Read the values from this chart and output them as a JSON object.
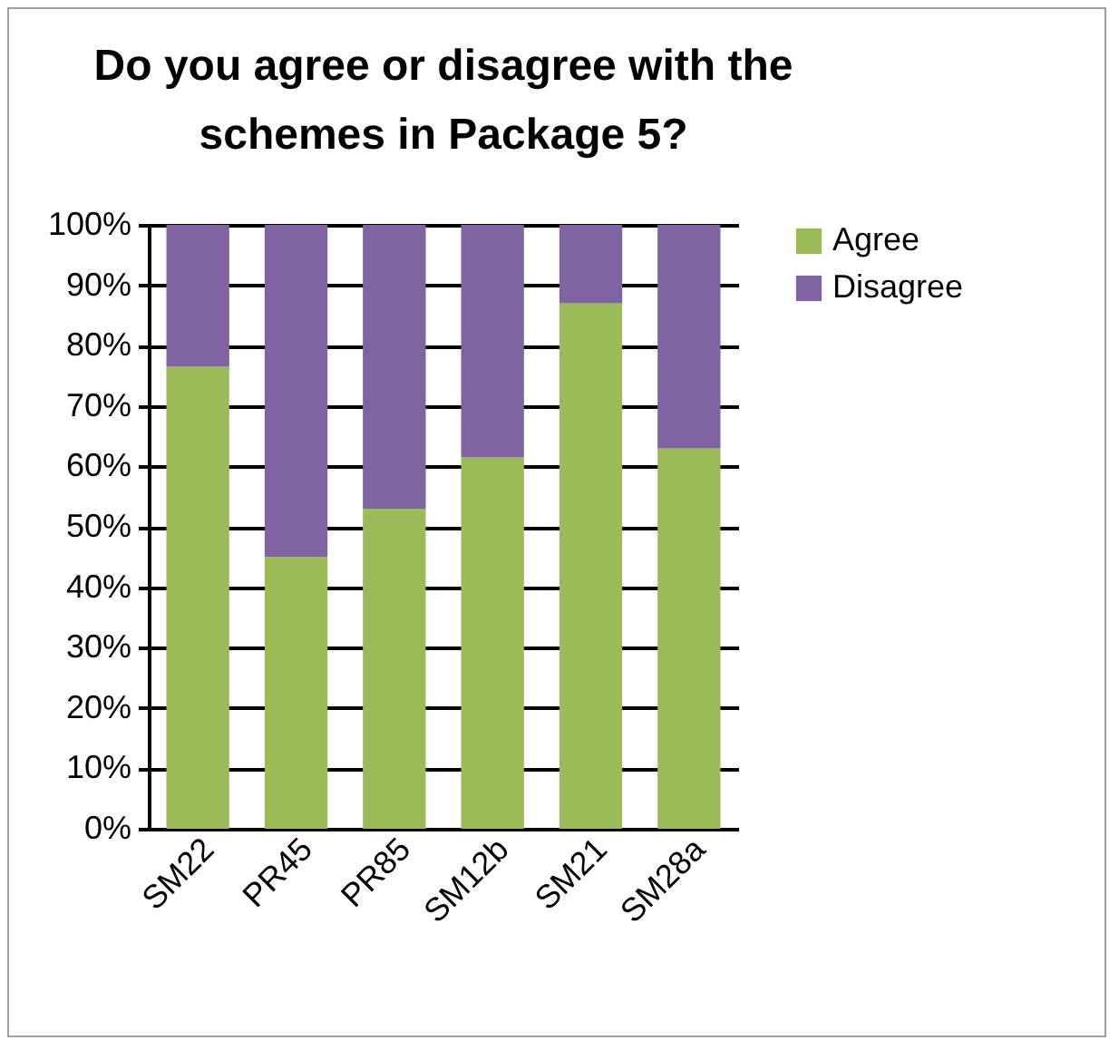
{
  "chart_data": {
    "type": "bar",
    "title": "Do you agree or disagree with the schemes in Package 5?",
    "categories": [
      "SM22",
      "PR45",
      "PR85",
      "SM12b",
      "SM21",
      "SM28a"
    ],
    "series": [
      {
        "name": "Agree",
        "color": "#9bbb59",
        "values": [
          76.5,
          45,
          53,
          61.5,
          87,
          63
        ]
      },
      {
        "name": "Disagree",
        "color": "#8064a2",
        "values": [
          23.5,
          55,
          47,
          38.5,
          13,
          37
        ]
      }
    ],
    "stacked": true,
    "ylim": [
      0,
      100
    ],
    "yticks": [
      {
        "value": 0,
        "label": "0%"
      },
      {
        "value": 10,
        "label": "10%"
      },
      {
        "value": 20,
        "label": "20%"
      },
      {
        "value": 30,
        "label": "30%"
      },
      {
        "value": 40,
        "label": "40%"
      },
      {
        "value": 50,
        "label": "50%"
      },
      {
        "value": 60,
        "label": "60%"
      },
      {
        "value": 70,
        "label": "70%"
      },
      {
        "value": 80,
        "label": "80%"
      },
      {
        "value": 90,
        "label": "90%"
      },
      {
        "value": 100,
        "label": "100%"
      }
    ],
    "grid": "y",
    "legend": "right"
  }
}
